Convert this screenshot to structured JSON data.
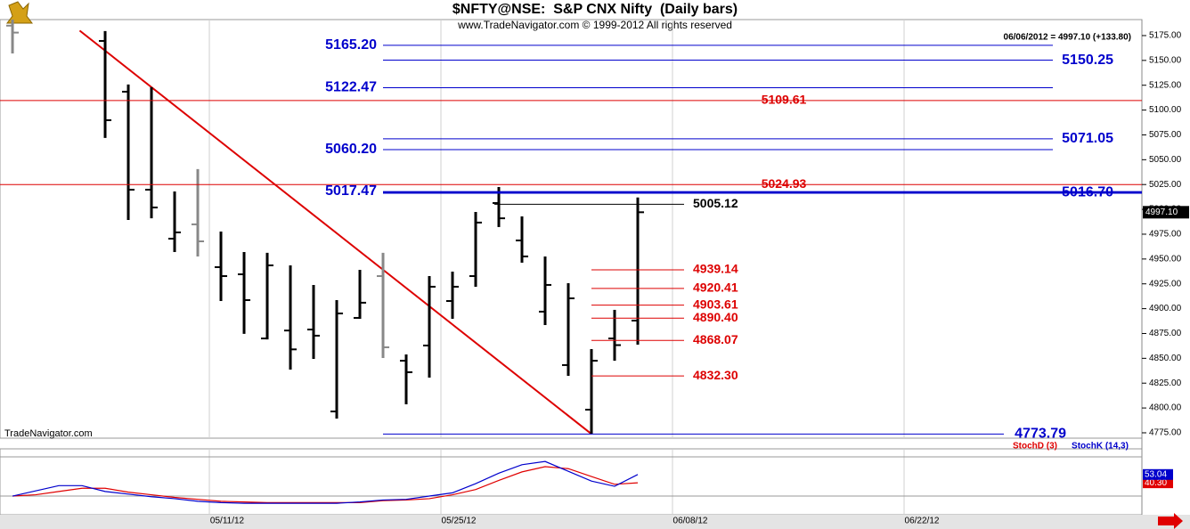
{
  "chart_data": {
    "type": "ohlc",
    "title": "$NFTY@NSE:  S&P CNX Nifty  (Daily bars)",
    "subtitle": "www.TradeNavigator.com © 1999-2012 All rights reserved",
    "info": "06/06/2012 = 4997.10 (+133.80)",
    "watermark": "TradeNavigator.com",
    "last_close_label": "4997.10",
    "xlim": [
      -0.54,
      48.77
    ],
    "xticks": [
      {
        "value": 9,
        "label": "05/11/12"
      },
      {
        "value": 19,
        "label": "05/25/12"
      },
      {
        "value": 29,
        "label": "06/08/12"
      },
      {
        "value": 39,
        "label": "06/22/12"
      }
    ],
    "ylim": [
      4769.6,
      5191.1
    ],
    "yticks": [
      {
        "value": 4775,
        "label": "4775.00"
      },
      {
        "value": 4800,
        "label": "4800.00"
      },
      {
        "value": 4825,
        "label": "4825.00"
      },
      {
        "value": 4850,
        "label": "4850.00"
      },
      {
        "value": 4875,
        "label": "4875.00"
      },
      {
        "value": 4900,
        "label": "4900.00"
      },
      {
        "value": 4925,
        "label": "4925.00"
      },
      {
        "value": 4950,
        "label": "4950.00"
      },
      {
        "value": 4975,
        "label": "4975.00"
      },
      {
        "value": 5000,
        "label": "5000.00"
      },
      {
        "value": 5025,
        "label": "5025.00"
      },
      {
        "value": 5050,
        "label": "5050.00"
      },
      {
        "value": 5075,
        "label": "5075.00"
      },
      {
        "value": 5100,
        "label": "5100.00"
      },
      {
        "value": 5125,
        "label": "5125.00"
      },
      {
        "value": 5150,
        "label": "5150.00"
      },
      {
        "value": 5175,
        "label": "5175.00"
      }
    ],
    "open": [
      5185,
      null,
      null,
      null,
      5169.6,
      5118.5,
      5019.8,
      4970.5,
      4984.9,
      4941.8,
      4934.6,
      4870,
      4878,
      4879,
      4796.5,
      4890.7,
      4932.8,
      4847.6,
      4862.9,
      4907.7,
      4932.8,
      5006.4,
      4968.7,
      4897,
      4843.2,
      4798.3,
      4870,
      4888
    ],
    "high": [
      5200,
      null,
      null,
      null,
      5179.5,
      5125.7,
      5123,
      5018,
      5040.5,
      4977.7,
      4957,
      4956.2,
      4943.6,
      4923.9,
      4908.6,
      4939.1,
      4956.2,
      4853.9,
      4932.8,
      4937.3,
      4997.4,
      5022.5,
      4992.9,
      4952.6,
      4925.7,
      4859.3,
      4898.8,
      5012
    ],
    "low": [
      5157,
      null,
      null,
      null,
      5071.9,
      4989.3,
      4991,
      4957,
      4952.6,
      4907.7,
      4874.6,
      4869,
      4838.7,
      4849.4,
      4789.3,
      4889.8,
      4850.3,
      4803.7,
      4830.6,
      4889.8,
      4922.1,
      4982.2,
      4946.3,
      4883.5,
      4832.4,
      4773.79,
      4847.6,
      4863.8
    ],
    "close": [
      5178,
      null,
      null,
      null,
      5089.8,
      5019.8,
      5001.9,
      4976.8,
      4967.8,
      4932.8,
      4908.6,
      4943.6,
      4859,
      4872.8,
      4895.2,
      4906,
      4861.1,
      4836,
      4922.1,
      4922.1,
      4986.7,
      4991,
      4952.6,
      4923.9,
      4910.4,
      4847.6,
      4863.3,
      4997.1
    ],
    "bar_colors": [
      "#888888",
      null,
      null,
      null,
      "#000000",
      "#000000",
      "#000000",
      "#000000",
      "#888888",
      "#000000",
      "#000000",
      "#000000",
      "#000000",
      "#000000",
      "#000000",
      "#000000",
      "#888888",
      "#000000",
      "#000000",
      "#000000",
      "#000000",
      "#000000",
      "#000000",
      "#000000",
      "#000000",
      "#000000",
      "#000000",
      "#000000"
    ],
    "trendline": {
      "color": "#dd0000",
      "start": {
        "x": 2.9,
        "y": 5180
      },
      "end": {
        "x": 25,
        "y": 4773.79
      }
    },
    "levels": [
      {
        "value": 5165.2,
        "label": "5165.20",
        "color": "#0000cc"
      },
      {
        "value": 5150.25,
        "label": "5150.25",
        "color": "#0000cc"
      },
      {
        "value": 5122.47,
        "label": "5122.47",
        "color": "#0000cc"
      },
      {
        "value": 5109.61,
        "label": "5109.61",
        "color": "#dd0000"
      },
      {
        "value": 5071.05,
        "label": "5071.05",
        "color": "#0000cc"
      },
      {
        "value": 5060.2,
        "label": "5060.20",
        "color": "#0000cc"
      },
      {
        "value": 5024.93,
        "label": "5024.93",
        "color": "#dd0000"
      },
      {
        "value": 5017.47,
        "label": "5017.47",
        "color": "#0000cc"
      },
      {
        "value": 5016.7,
        "label": "5016.70",
        "color": "#0000cc"
      },
      {
        "value": 5005.12,
        "label": "5005.12",
        "color": "#000000"
      },
      {
        "value": 4939.14,
        "label": "4939.14",
        "color": "#dd0000"
      },
      {
        "value": 4920.41,
        "label": "4920.41",
        "color": "#dd0000"
      },
      {
        "value": 4903.61,
        "label": "4903.61",
        "color": "#dd0000"
      },
      {
        "value": 4890.4,
        "label": "4890.40",
        "color": "#dd0000"
      },
      {
        "value": 4868.07,
        "label": "4868.07",
        "color": "#dd0000"
      },
      {
        "value": 4832.3,
        "label": "4832.30",
        "color": "#dd0000"
      },
      {
        "value": 4773.79,
        "label": "4773.79",
        "color": "#0000cc"
      }
    ],
    "stoch": {
      "ylim": [
        -8.6,
        92.3
      ],
      "levels": [
        20,
        80
      ],
      "series": [
        {
          "name": "StochD (3)",
          "color": "#e00000",
          "values": [
            20,
            22,
            27,
            32,
            32,
            26,
            22,
            18,
            15,
            12,
            11,
            10,
            10,
            10,
            10,
            10,
            13,
            14,
            16,
            22,
            30,
            44,
            57,
            65,
            62,
            50,
            38,
            40.3
          ],
          "value_labels": [
            null,
            null,
            null,
            null,
            null,
            null,
            null,
            null,
            null,
            null,
            null,
            null,
            null,
            null,
            null,
            null,
            null,
            null,
            null,
            null,
            null,
            null,
            null,
            null,
            null,
            null,
            null,
            "40.30"
          ]
        },
        {
          "name": "StochK (14,3)",
          "color": "#0000cc",
          "values": [
            20,
            28,
            36,
            36,
            27,
            23,
            19,
            16,
            12,
            10,
            9,
            9,
            9,
            9,
            9,
            11,
            14,
            15,
            20,
            25,
            39,
            55,
            68,
            73,
            58,
            43,
            35,
            53.04
          ]
        }
      ]
    }
  }
}
